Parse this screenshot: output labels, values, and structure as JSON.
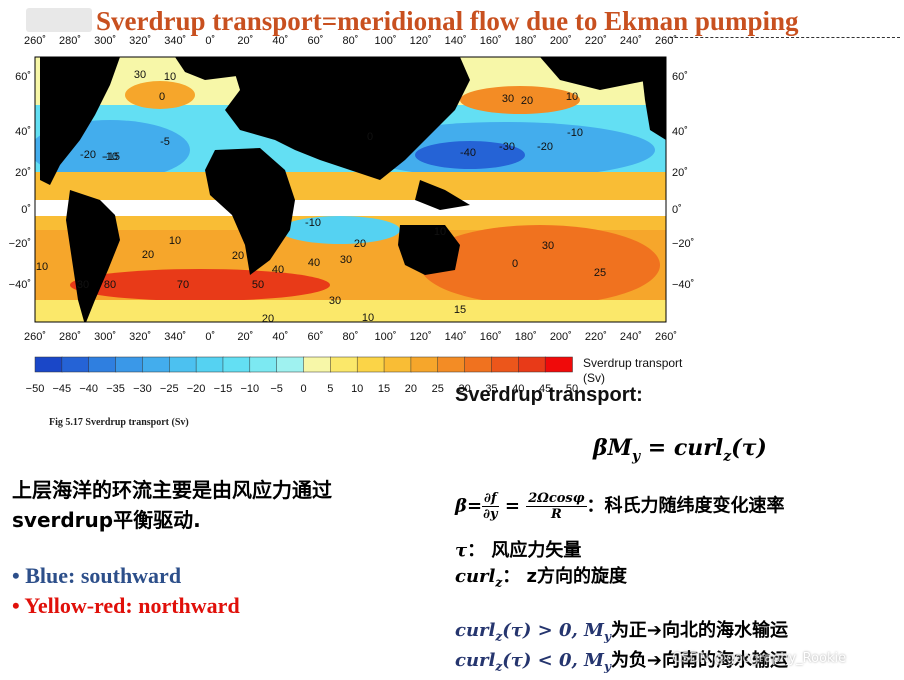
{
  "slide": {
    "title": "Sverdrup transport=meridional flow due to Ekman pumping",
    "figure_caption": "Fig  5.17 Sverdrup transport (Sv)",
    "zh_line1": "上层海洋的环流主要是由风应力通过",
    "zh_line2": "sverdrup平衡驱动.",
    "bullet_blue": "• Blue: southward",
    "bullet_red": "• Yellow-red: northward",
    "right_heading": "Sverdrup transport:",
    "beta_desc": "：科氏力随纬度变化速率",
    "tau_desc": "：  风应力矢量",
    "curl_desc": "：  z方向的旋度",
    "pos_result": "为正➔向北的海水输运",
    "neg_result": "为负➔向南的海水输运",
    "watermark": "CSDN @geography_Rookie"
  },
  "map": {
    "lon_labels": [
      "260˚",
      "280˚",
      "300˚",
      "320˚",
      "340˚",
      "0˚",
      "20˚",
      "40˚",
      "60˚",
      "80˚",
      "100˚",
      "120˚",
      "140˚",
      "160˚",
      "180˚",
      "200˚",
      "220˚",
      "240˚",
      "260˚"
    ],
    "lat_labels_left": [
      "60˚",
      "40˚",
      "20˚",
      "0˚",
      "−20˚",
      "−40˚"
    ],
    "lat_labels_right": [
      "60˚",
      "40˚",
      "20˚",
      "0˚",
      "−20˚",
      "−40˚"
    ],
    "contour_labels": [
      "30",
      "10",
      "0",
      "-10",
      "-20",
      "-15",
      "-5",
      "-40",
      "-30",
      "-20",
      "-10",
      "0",
      "30",
      "20",
      "10",
      "-10",
      "10",
      "20",
      "30",
      "40",
      "20",
      "10",
      "80",
      "70",
      "50",
      "40",
      "30",
      "20",
      "10",
      "0",
      "30",
      "25",
      "15",
      "30",
      "20",
      "10"
    ],
    "colorbar_ticks": [
      "−50",
      "−45",
      "−40",
      "−35",
      "−30",
      "−25",
      "−20",
      "−15",
      "−10",
      "−5",
      "0",
      "5",
      "10",
      "15",
      "20",
      "25",
      "30",
      "35",
      "40",
      "45",
      "50"
    ],
    "colorbar_colors": [
      "#1a47c8",
      "#2563d6",
      "#2f7fe0",
      "#3a98e8",
      "#43aded",
      "#4cc1f0",
      "#55d2f2",
      "#63dff3",
      "#7ce9f2",
      "#9ff2f0",
      "#f7f7a8",
      "#fbe86a",
      "#fbd447",
      "#f9bd35",
      "#f6a62b",
      "#f38c25",
      "#f0721f",
      "#ec561b",
      "#e83a18",
      "#f00a0a"
    ],
    "colorbar_label": "Sverdrup transport (Sv)",
    "land_color": "#000000"
  }
}
